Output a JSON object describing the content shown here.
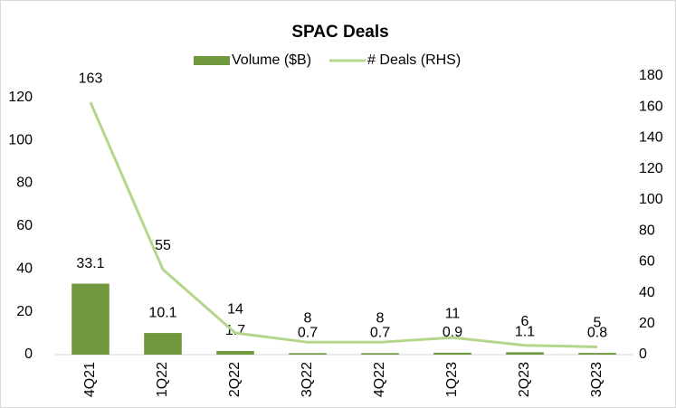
{
  "chart_data": {
    "type": "bar_line",
    "title": "SPAC  Deals",
    "categories": [
      "4Q21",
      "1Q22",
      "2Q22",
      "3Q22",
      "4Q22",
      "1Q23",
      "2Q23",
      "3Q23"
    ],
    "series": [
      {
        "name": "Volume ($B)",
        "type": "bar",
        "color": "#70993d",
        "values": [
          33.1,
          10.1,
          1.7,
          0.7,
          0.7,
          0.9,
          1.1,
          0.8
        ]
      },
      {
        "name": "# Deals (RHS)",
        "type": "line",
        "axis": "y2",
        "color": "#b4d68c",
        "values": [
          163,
          55,
          14,
          8,
          8,
          11,
          6,
          5
        ]
      }
    ],
    "ylim": [
      0,
      130
    ],
    "yticks": [
      0,
      20,
      40,
      60,
      80,
      100,
      120
    ],
    "y2lim": [
      0,
      180
    ],
    "y2ticks": [
      0,
      20,
      40,
      60,
      80,
      100,
      120,
      140,
      160,
      180
    ],
    "legend": "top"
  }
}
